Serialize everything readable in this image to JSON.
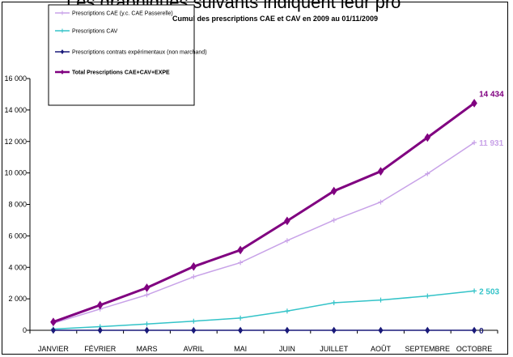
{
  "overlay_text": "Les graphiques suivants indiquent leur pro",
  "chart_data": {
    "type": "line",
    "title": "Cumul des prescriptions CAE et CAV  en 2009 au 01/11/2009",
    "xlabel": "",
    "ylabel": "",
    "categories": [
      "JANVIER",
      "FÉVRIER",
      "MARS",
      "AVRIL",
      "MAI",
      "JUIN",
      "JUILLET",
      "AOÛT",
      "SEPTEMBRE",
      "OCTOBRE"
    ],
    "ylim": [
      0,
      16000
    ],
    "yticks": [
      "0",
      "2 000",
      "4 000",
      "6 000",
      "8 000",
      "10 000",
      "12 000",
      "14 000",
      "16 000"
    ],
    "grid": false,
    "legend_position": "top-left",
    "series": [
      {
        "name": "Prescriptions CAE (y.c. CAE Passerelle)",
        "color": "#c8a2e8",
        "marker": "plus",
        "values": [
          450,
          1350,
          2250,
          3400,
          4300,
          5700,
          7000,
          8150,
          9950,
          11931
        ],
        "end_label": "11 931"
      },
      {
        "name": "Prescriptions CAV",
        "color": "#33c3c8",
        "marker": "plus",
        "values": [
          80,
          230,
          400,
          580,
          780,
          1220,
          1750,
          1920,
          2180,
          2503
        ],
        "end_label": "2 503"
      },
      {
        "name": "Prescriptions contrats expérimentaux (non marchand)",
        "color": "#1a1a7a",
        "marker": "diamond",
        "values": [
          0,
          0,
          0,
          0,
          0,
          0,
          0,
          0,
          0,
          0
        ],
        "end_label": "0"
      },
      {
        "name": "Total Prescriptions CAE+CAV+EXPE",
        "color": "#800080",
        "marker": "diamond",
        "values": [
          530,
          1600,
          2700,
          4050,
          5100,
          6950,
          8850,
          10100,
          12250,
          14434
        ],
        "end_label": "14 434"
      }
    ]
  }
}
